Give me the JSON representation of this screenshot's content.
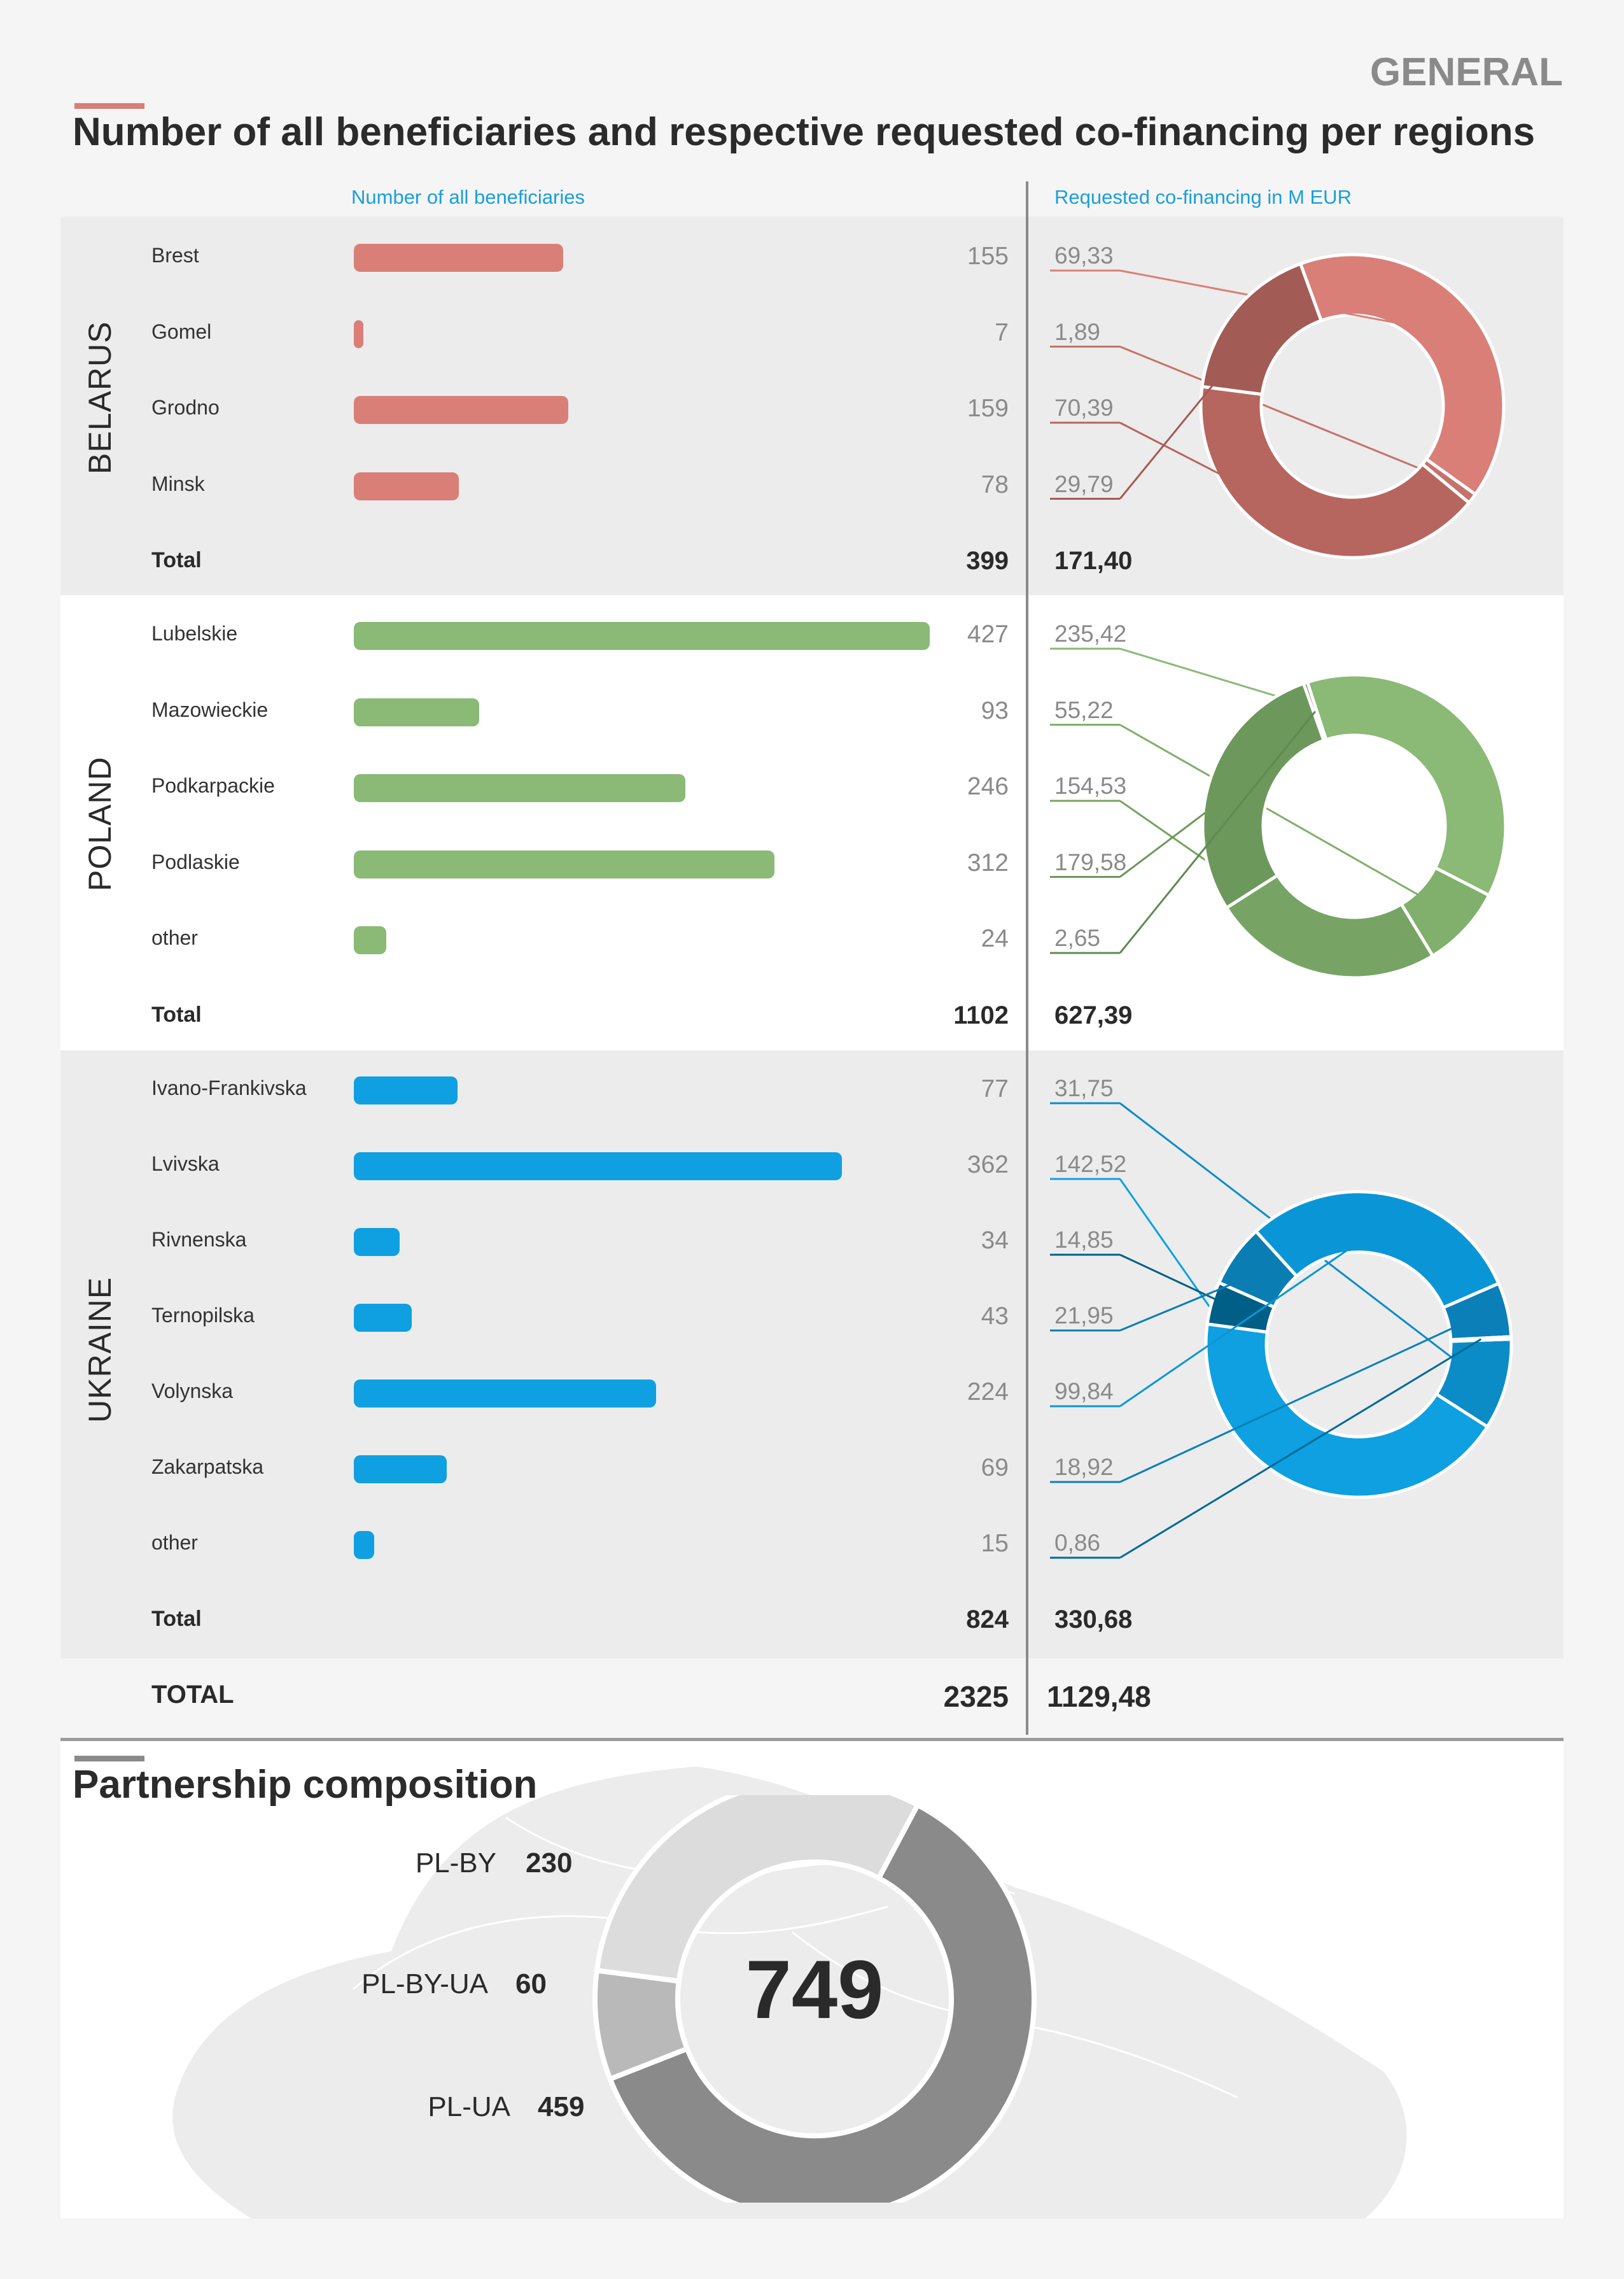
{
  "header": {
    "tag": "GENERAL",
    "title": "Number of all beneficiaries and respective requested co-financing per regions"
  },
  "columns": {
    "left": "Number of all beneficiaries",
    "right": "Requested co-financing in M EUR"
  },
  "colors": {
    "belarus": "#d97f78",
    "poland": "#8aba76",
    "ukraine": "#0ea0e0",
    "grey_dark": "#8a8a8a",
    "grey_light": "#dcdcdc",
    "grey_mid": "#b9b9b9"
  },
  "chart_data": [
    {
      "type": "bar",
      "country": "BELARUS",
      "categories": [
        "Brest",
        "Gomel",
        "Grodno",
        "Minsk"
      ],
      "values": [
        155,
        7,
        159,
        78
      ],
      "total_label": "Total",
      "total": "399",
      "display_values": [
        "155",
        "7",
        "159",
        "78"
      ],
      "cofinancing": [
        69.33,
        1.89,
        70.39,
        29.79
      ],
      "cofinancing_labels": [
        "69,33",
        "1,89",
        "70,39",
        "29,79"
      ],
      "cofinancing_total": "171,40",
      "donut_colors": [
        "#d97f78",
        "#c5726a",
        "#b6665f",
        "#a35b55"
      ]
    },
    {
      "type": "bar",
      "country": "POLAND",
      "categories": [
        "Lubelskie",
        "Mazowieckie",
        "Podkarpackie",
        "Podlaskie",
        "other"
      ],
      "values": [
        427,
        93,
        246,
        312,
        24
      ],
      "total_label": "Total",
      "total": "1102",
      "display_values": [
        "427",
        "93",
        "246",
        "312",
        "24"
      ],
      "cofinancing": [
        235.42,
        55.22,
        154.53,
        179.58,
        2.65
      ],
      "cofinancing_labels": [
        "235,42",
        "55,22",
        "154,53",
        "179,58",
        "2,65"
      ],
      "cofinancing_total": "627,39",
      "donut_colors": [
        "#8aba76",
        "#80b06c",
        "#77a464",
        "#6d985c",
        "#5f8a50"
      ]
    },
    {
      "type": "bar",
      "country": "UKRAINE",
      "categories": [
        "Ivano-Frankivska",
        "Lvivska",
        "Rivnenska",
        "Ternopilska",
        "Volynska",
        "Zakarpatska",
        "other"
      ],
      "values": [
        77,
        362,
        34,
        43,
        224,
        69,
        15
      ],
      "total_label": "Total",
      "total": "824",
      "display_values": [
        "77",
        "362",
        "34",
        "43",
        "224",
        "69",
        "15"
      ],
      "cofinancing": [
        31.75,
        142.52,
        14.85,
        21.95,
        99.84,
        18.92,
        0.86
      ],
      "cofinancing_labels": [
        "31,75",
        "142,52",
        "14,85",
        "21,95",
        "99,84",
        "18,92",
        "0,86"
      ],
      "cofinancing_total": "330,68",
      "donut_colors": [
        "#0b8cc7",
        "#0ea0e0",
        "#005f86",
        "#0a7db3",
        "#0a96d6",
        "#0b7fb8",
        "#006a96"
      ]
    },
    {
      "type": "pie",
      "title": "Partnership composition",
      "categories": [
        "PL-BY",
        "PL-BY-UA",
        "PL-UA"
      ],
      "values": [
        230,
        60,
        459
      ],
      "total": "749",
      "colors": [
        "#dcdcdc",
        "#b9b9b9",
        "#8a8a8a"
      ]
    }
  ],
  "grand_total": {
    "label": "TOTAL",
    "beneficiaries": "2325",
    "cofinancing": "1129,48"
  },
  "partnership": {
    "title": "Partnership composition",
    "total": "749",
    "items": [
      {
        "label": "PL-BY",
        "value": "230"
      },
      {
        "label": "PL-BY-UA",
        "value": "60"
      },
      {
        "label": "PL-UA",
        "value": "459"
      }
    ]
  }
}
